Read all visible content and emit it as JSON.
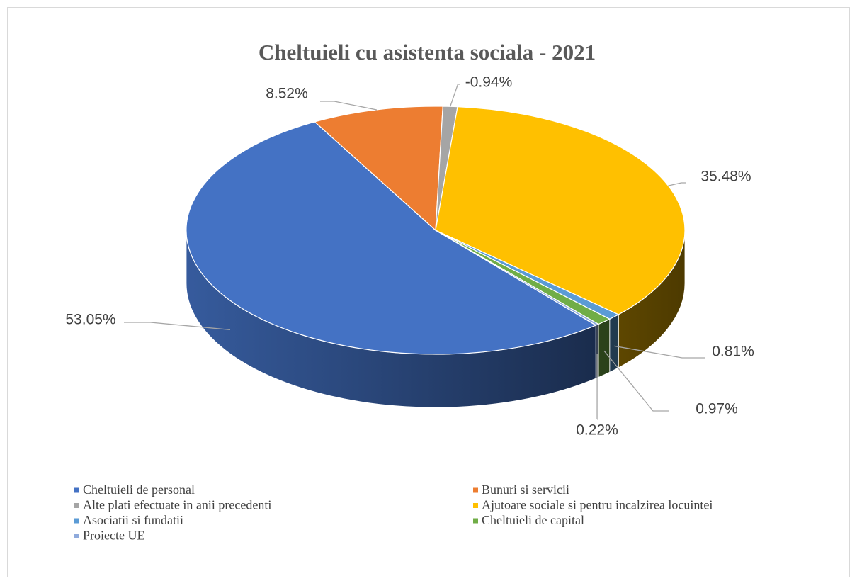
{
  "chart_data": {
    "type": "pie3d",
    "title": "Cheltuieli cu asistenta sociala - 2021",
    "categories": [
      "Cheltuieli de personal",
      "Bunuri si servicii",
      "Alte plati efectuate in anii precedenti",
      "Ajutoare sociale si pentru incalzirea locuintei",
      "Asociatii si fundatii",
      "Cheltuieli de capital",
      "Proiecte UE"
    ],
    "values": [
      53.05,
      8.52,
      -0.94,
      35.48,
      0.81,
      0.97,
      0.22
    ],
    "value_labels": [
      "53.05%",
      "8.52%",
      "-0.94%",
      "35.48%",
      "0.81%",
      "0.97%",
      "0.22%"
    ],
    "colors": [
      "#4472c4",
      "#ed7d31",
      "#a5a5a5",
      "#ffc000",
      "#5b9bd5",
      "#70ad47",
      "#8faadc"
    ],
    "legend": "bottom"
  }
}
